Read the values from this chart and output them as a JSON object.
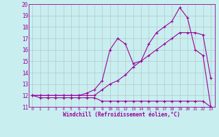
{
  "xlabel": "Windchill (Refroidissement éolien,°C)",
  "bg_color": "#c8eef0",
  "line_color": "#990099",
  "grid_color": "#b0b0b0",
  "xlim": [
    -0.5,
    23.5
  ],
  "ylim": [
    11,
    20
  ],
  "xticks": [
    0,
    1,
    2,
    3,
    4,
    5,
    6,
    7,
    8,
    9,
    10,
    11,
    12,
    13,
    14,
    15,
    16,
    17,
    18,
    19,
    20,
    21,
    22,
    23
  ],
  "yticks": [
    11,
    12,
    13,
    14,
    15,
    16,
    17,
    18,
    19,
    20
  ],
  "line1_x": [
    0,
    1,
    2,
    3,
    4,
    5,
    6,
    7,
    8,
    9,
    10,
    11,
    12,
    13,
    14,
    15,
    16,
    17,
    18,
    19,
    20,
    21,
    22,
    23
  ],
  "line1_y": [
    12,
    11.8,
    11.8,
    11.8,
    11.8,
    11.8,
    11.8,
    11.8,
    11.8,
    11.5,
    11.5,
    11.5,
    11.5,
    11.5,
    11.5,
    11.5,
    11.5,
    11.5,
    11.5,
    11.5,
    11.5,
    11.5,
    11.5,
    11.0
  ],
  "line2_x": [
    0,
    1,
    2,
    3,
    4,
    5,
    6,
    7,
    8,
    9,
    10,
    11,
    12,
    13,
    14,
    15,
    16,
    17,
    18,
    19,
    20,
    21,
    22,
    23
  ],
  "line2_y": [
    12,
    12,
    12,
    12,
    12,
    12,
    12,
    12,
    12,
    12.5,
    13.0,
    13.3,
    13.8,
    14.5,
    15.0,
    15.5,
    16.0,
    16.5,
    17.0,
    17.5,
    17.5,
    17.5,
    17.3,
    13.5
  ],
  "line3_x": [
    0,
    1,
    2,
    3,
    4,
    5,
    6,
    7,
    8,
    9,
    10,
    11,
    12,
    13,
    14,
    15,
    16,
    17,
    18,
    19,
    20,
    21,
    22,
    23
  ],
  "line3_y": [
    12,
    12,
    12,
    12,
    12,
    12,
    12,
    12.2,
    12.5,
    13.3,
    16.0,
    17.0,
    16.5,
    14.8,
    15.0,
    16.5,
    17.5,
    18.0,
    18.5,
    19.7,
    18.8,
    16.0,
    15.5,
    11.0
  ]
}
